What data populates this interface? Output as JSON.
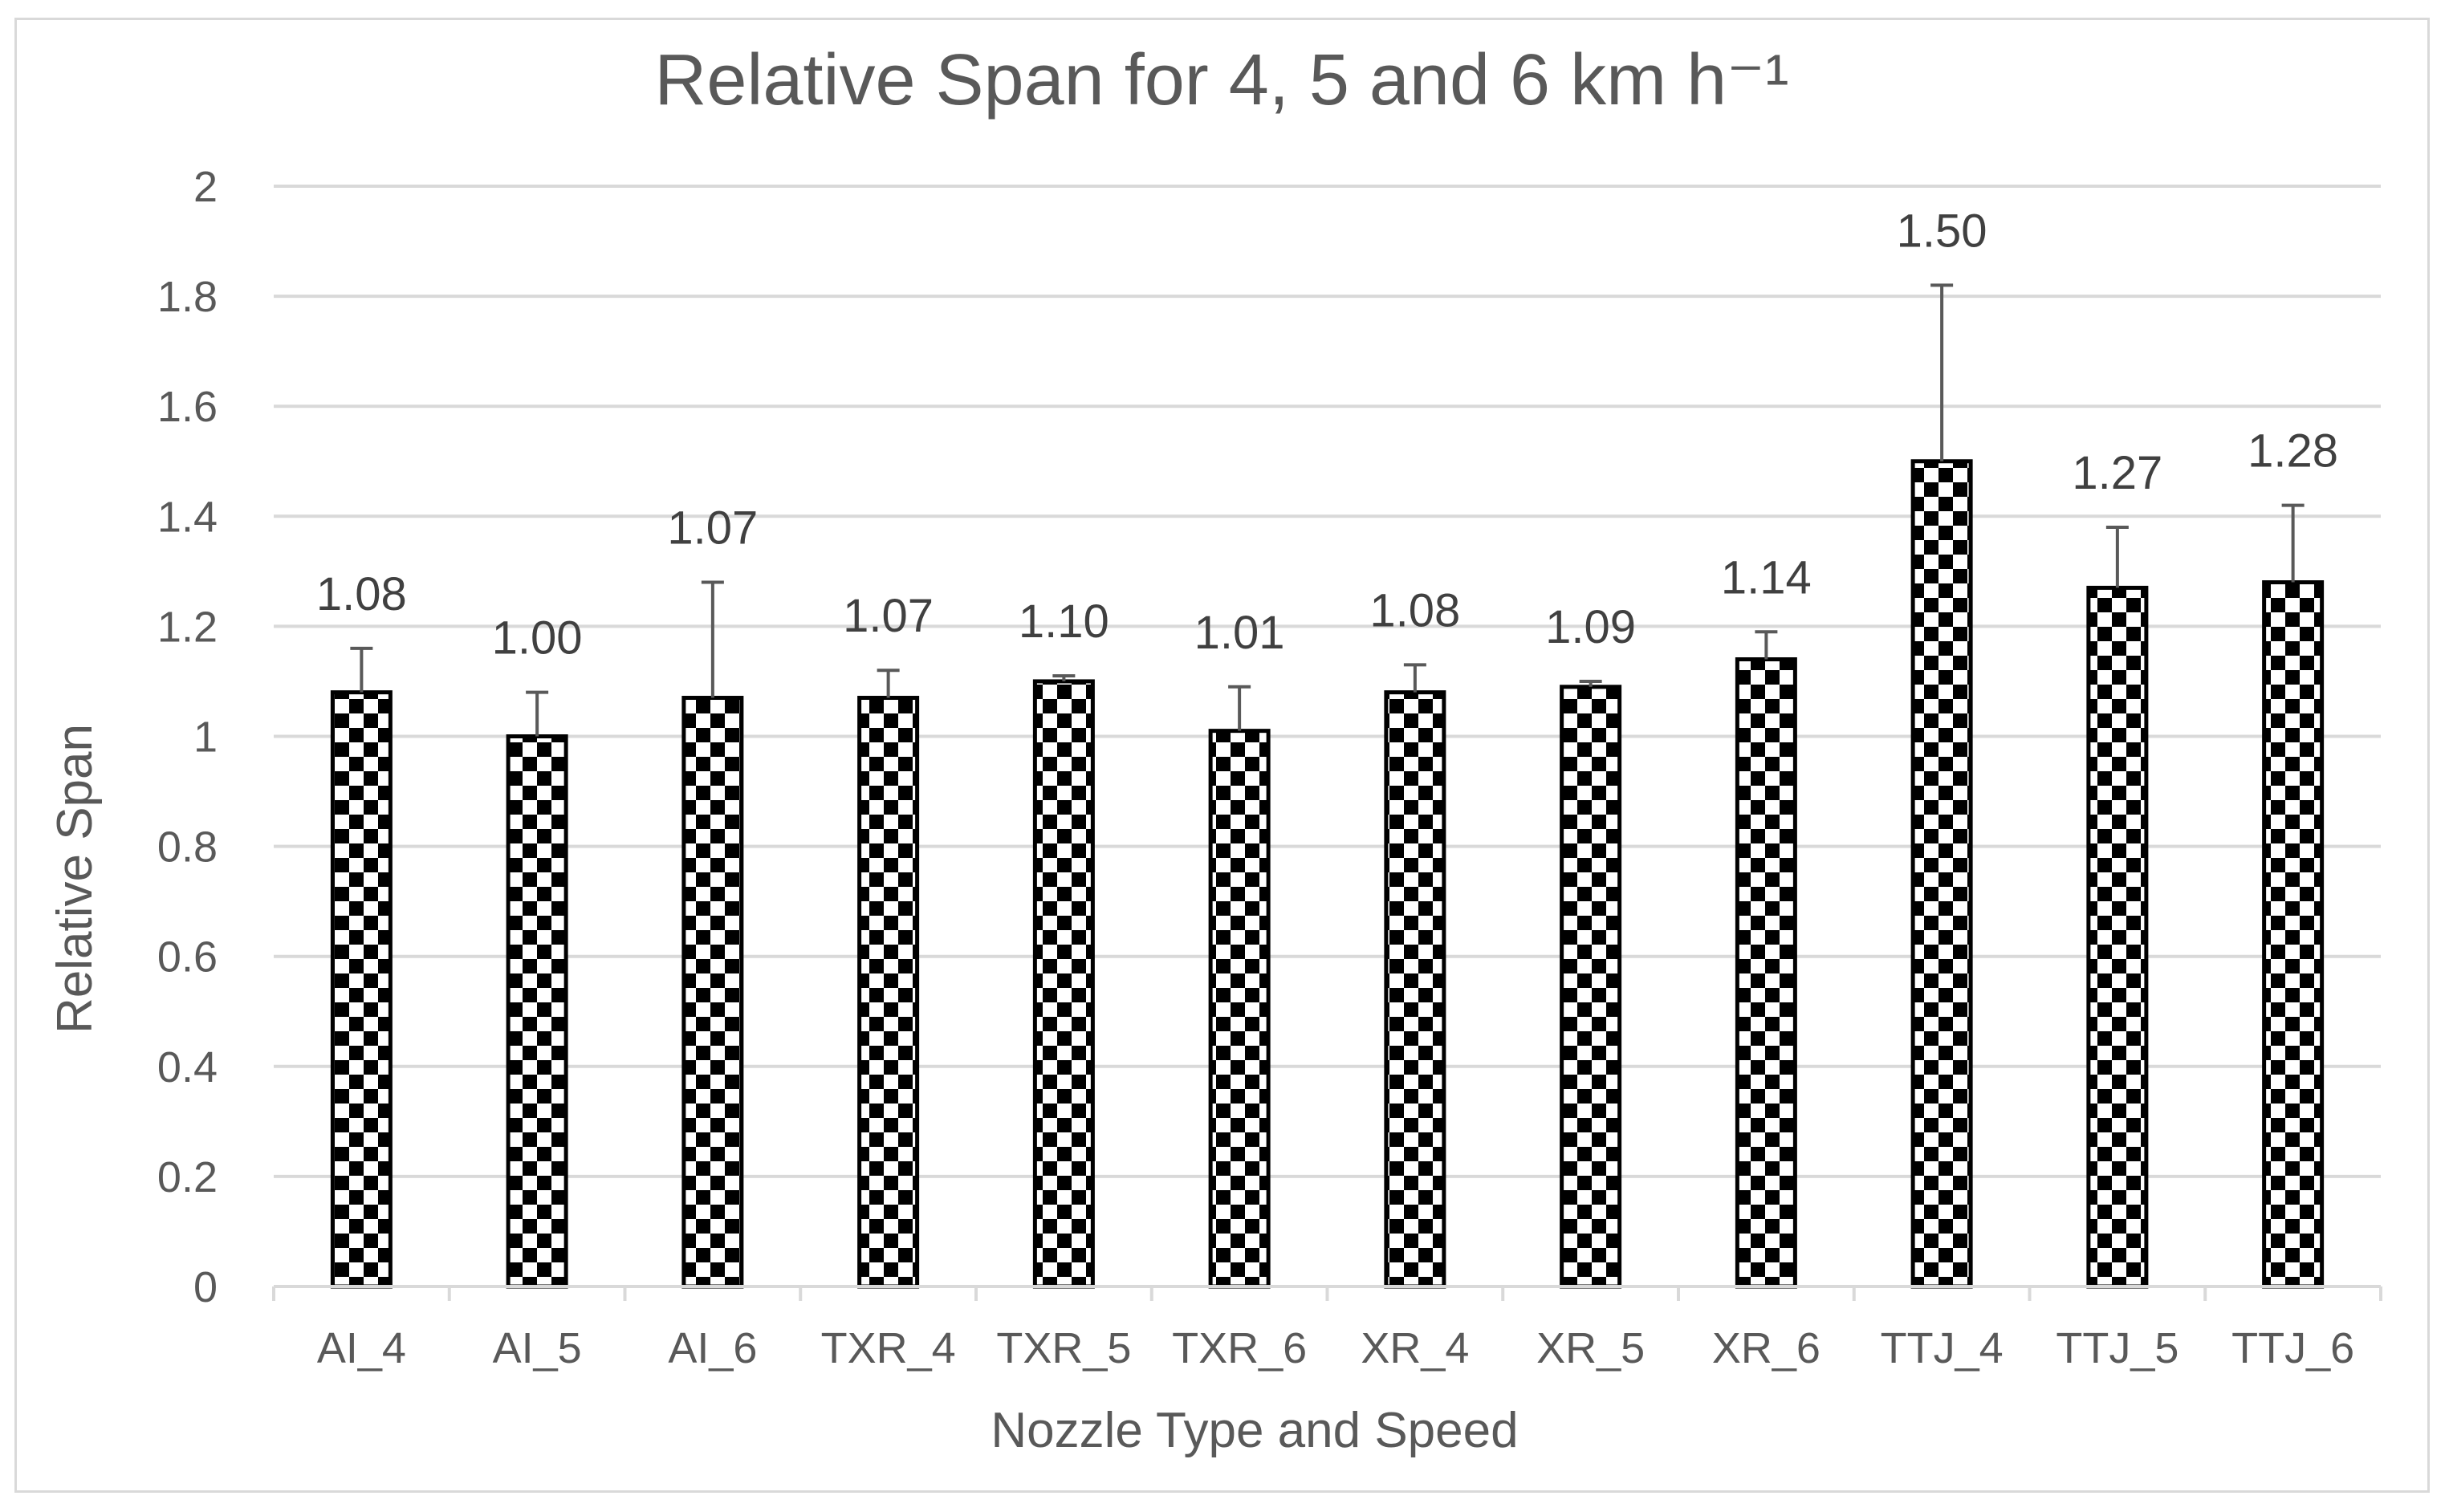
{
  "chart_data": {
    "type": "bar",
    "title": "Relative Span for 4, 5 and 6 km h⁻¹",
    "xlabel": "Nozzle Type and Speed",
    "ylabel": "Relative Span",
    "ylim": [
      0,
      2
    ],
    "yticks": [
      "0",
      "0.2",
      "0.4",
      "0.6",
      "0.8",
      "1",
      "1.2",
      "1.4",
      "1.6",
      "1.8",
      "2"
    ],
    "grid": true,
    "legend": "none",
    "bar_pattern": "checkerboard",
    "colors": {
      "bar_dark": "#000000",
      "bar_light": "#ffffff",
      "grid": "#d9d9d9",
      "text": "#595959",
      "error_bar": "#595959"
    },
    "categories": [
      "AI_4",
      "AI_5",
      "AI_6",
      "TXR_4",
      "TXR_5",
      "TXR_6",
      "XR_4",
      "XR_5",
      "XR_6",
      "TTJ_4",
      "TTJ_5",
      "TTJ_6"
    ],
    "values": [
      1.08,
      1.0,
      1.07,
      1.07,
      1.1,
      1.01,
      1.08,
      1.09,
      1.14,
      1.5,
      1.27,
      1.28
    ],
    "error_bars": [
      0.08,
      0.08,
      0.21,
      0.05,
      0.01,
      0.08,
      0.05,
      0.01,
      0.05,
      0.32,
      0.11,
      0.14
    ],
    "data_labels": [
      "1.08",
      "1.00",
      "1.07",
      "1.07",
      "1.10",
      "1.01",
      "1.08",
      "1.09",
      "1.14",
      "1.50",
      "1.27",
      "1.28"
    ]
  }
}
